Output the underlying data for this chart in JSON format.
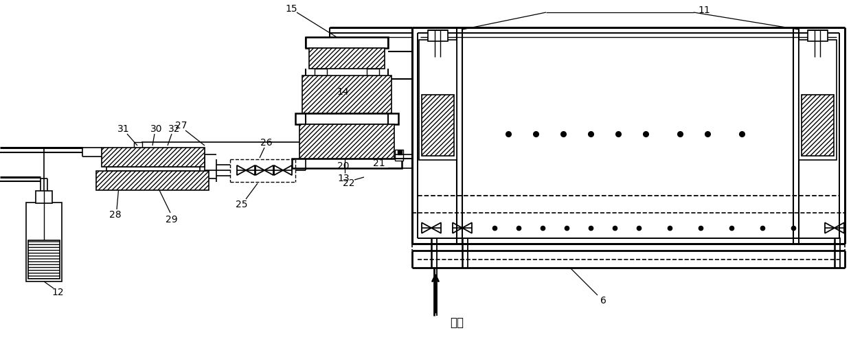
{
  "bg": "#ffffff",
  "figw": 12.39,
  "figh": 5.04,
  "dpi": 100
}
